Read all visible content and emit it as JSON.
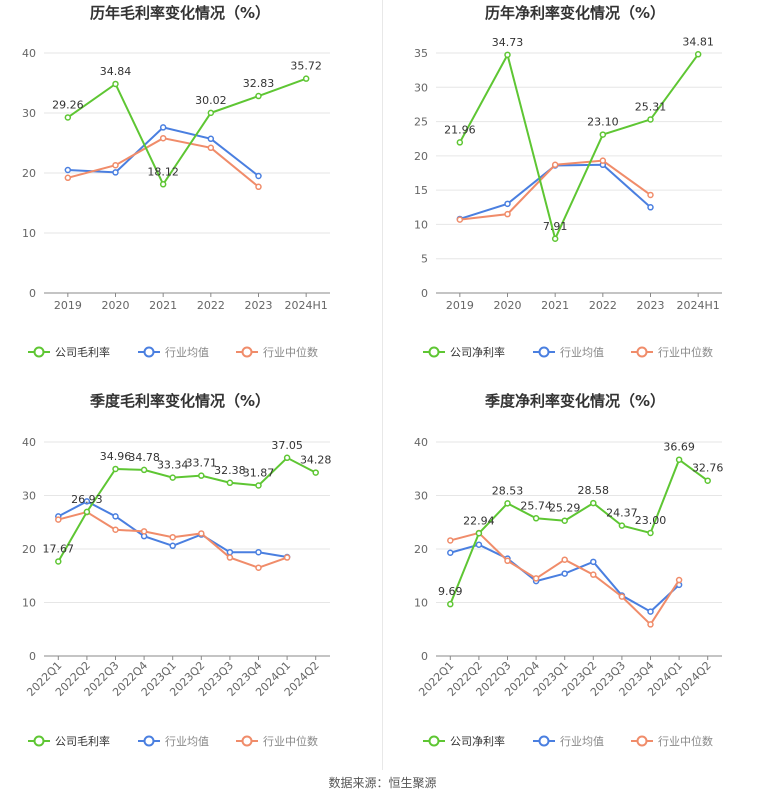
{
  "source_text": "数据来源：恒生聚源",
  "colors": {
    "company": "#5ec633",
    "avg": "#4a7fe0",
    "median": "#f08c6a",
    "grid": "#e6e6e6",
    "axis": "#888888",
    "title": "#333333",
    "label": "#333333"
  },
  "chart_data": [
    {
      "type": "line",
      "title": "历年毛利率变化情况（%）",
      "categories": [
        "2019",
        "2020",
        "2021",
        "2022",
        "2023",
        "2024H1"
      ],
      "ylim": [
        0,
        40
      ],
      "yticks": [
        0,
        10,
        20,
        30,
        40
      ],
      "series": [
        {
          "name": "公司毛利率",
          "role": "company",
          "values": [
            29.26,
            34.84,
            18.12,
            30.02,
            32.83,
            35.72
          ],
          "labels": [
            "29.26",
            "34.84",
            "18.12",
            "30.02",
            "32.83",
            "35.72"
          ]
        },
        {
          "name": "行业均值",
          "role": "avg",
          "values": [
            20.5,
            20.1,
            27.6,
            25.7,
            19.5,
            null
          ]
        },
        {
          "name": "行业中位数",
          "role": "median",
          "values": [
            19.2,
            21.3,
            25.8,
            24.2,
            17.7,
            null
          ]
        }
      ]
    },
    {
      "type": "line",
      "title": "历年净利率变化情况（%）",
      "categories": [
        "2019",
        "2020",
        "2021",
        "2022",
        "2023",
        "2024H1"
      ],
      "ylim": [
        0,
        35
      ],
      "yticks": [
        0,
        5,
        10,
        15,
        20,
        25,
        30,
        35
      ],
      "series": [
        {
          "name": "公司净利率",
          "role": "company",
          "values": [
            21.96,
            34.73,
            7.91,
            23.1,
            25.31,
            34.81
          ],
          "labels": [
            "21.96",
            "34.73",
            "7.91",
            "23.10",
            "25.31",
            "34.81"
          ]
        },
        {
          "name": "行业均值",
          "role": "avg",
          "values": [
            10.8,
            13.0,
            18.6,
            18.7,
            12.5,
            null
          ]
        },
        {
          "name": "行业中位数",
          "role": "median",
          "values": [
            10.7,
            11.5,
            18.7,
            19.3,
            14.3,
            null
          ]
        }
      ]
    },
    {
      "type": "line",
      "title": "季度毛利率变化情况（%）",
      "categories": [
        "2022Q1",
        "2022Q2",
        "2022Q3",
        "2022Q4",
        "2023Q1",
        "2023Q2",
        "2023Q3",
        "2023Q4",
        "2024Q1",
        "2024Q2"
      ],
      "ylim": [
        0,
        40
      ],
      "yticks": [
        0,
        10,
        20,
        30,
        40
      ],
      "series": [
        {
          "name": "公司毛利率",
          "role": "company",
          "values": [
            17.67,
            26.93,
            34.96,
            34.78,
            33.34,
            33.71,
            32.38,
            31.87,
            37.05,
            34.28
          ],
          "labels": [
            "17.67",
            "26.93",
            "34.96",
            "34.78",
            "33.34",
            "33.71",
            "32.38",
            "31.87",
            "37.05",
            "34.28"
          ]
        },
        {
          "name": "行业均值",
          "role": "avg",
          "values": [
            26.1,
            28.9,
            26.1,
            22.4,
            20.6,
            22.7,
            19.4,
            19.4,
            18.5,
            null
          ]
        },
        {
          "name": "行业中位数",
          "role": "median",
          "values": [
            25.5,
            26.9,
            23.6,
            23.3,
            22.2,
            22.9,
            18.4,
            16.5,
            18.4,
            null
          ]
        }
      ]
    },
    {
      "type": "line",
      "title": "季度净利率变化情况（%）",
      "categories": [
        "2022Q1",
        "2022Q2",
        "2022Q3",
        "2022Q4",
        "2023Q1",
        "2023Q2",
        "2023Q3",
        "2023Q4",
        "2024Q1",
        "2024Q2"
      ],
      "ylim": [
        0,
        40
      ],
      "yticks": [
        0,
        10,
        20,
        30,
        40
      ],
      "series": [
        {
          "name": "公司净利率",
          "role": "company",
          "values": [
            9.69,
            22.94,
            28.53,
            25.74,
            25.29,
            28.58,
            24.37,
            23.0,
            36.69,
            32.76
          ],
          "labels": [
            "9.69",
            "22.94",
            "28.53",
            "25.74",
            "25.29",
            "28.58",
            "24.37",
            "23.00",
            "36.69",
            "32.76"
          ]
        },
        {
          "name": "行业均值",
          "role": "avg",
          "values": [
            19.3,
            20.8,
            18.2,
            14.0,
            15.4,
            17.6,
            11.3,
            8.3,
            13.3,
            null
          ]
        },
        {
          "name": "行业中位数",
          "role": "median",
          "values": [
            21.6,
            23.0,
            17.8,
            14.5,
            18.0,
            15.2,
            11.1,
            5.9,
            14.2,
            null
          ]
        }
      ]
    }
  ]
}
